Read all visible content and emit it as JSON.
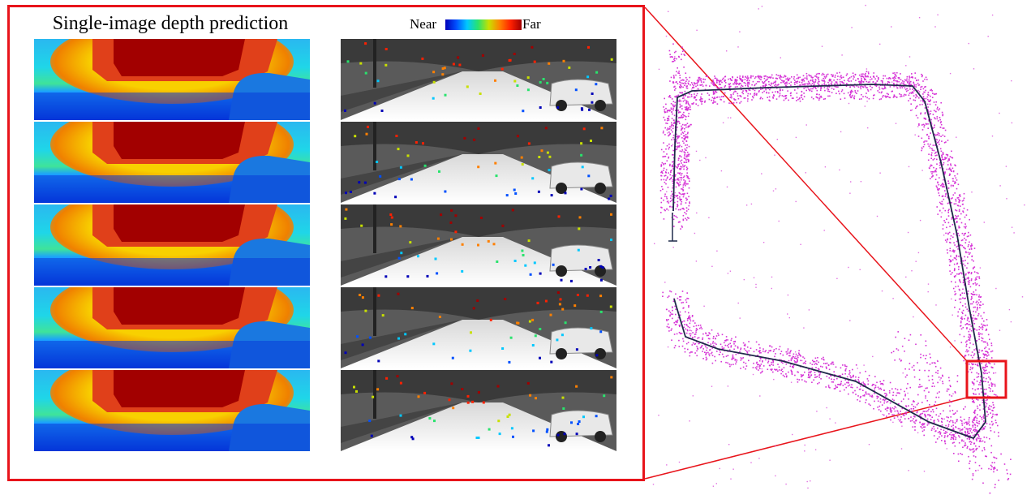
{
  "figure": {
    "depth_title": "Single-image depth prediction",
    "legend": {
      "near_label": "Near",
      "far_label": "Far",
      "colormap": [
        "#0000b8",
        "#0050ff",
        "#00c8ff",
        "#29e36d",
        "#c8e000",
        "#ff8000",
        "#ff2000",
        "#a00000"
      ]
    },
    "colors": {
      "highlight": "#e8141b",
      "map_points": "#d633d6",
      "trajectory": "#1f2a4a"
    },
    "depth_panels": [
      {
        "row": 1
      },
      {
        "row": 2
      },
      {
        "row": 3
      },
      {
        "row": 4
      },
      {
        "row": 5
      }
    ],
    "camera_panels": [
      {
        "row": 1
      },
      {
        "row": 2
      },
      {
        "row": 3
      },
      {
        "row": 4
      },
      {
        "row": 5
      }
    ]
  }
}
